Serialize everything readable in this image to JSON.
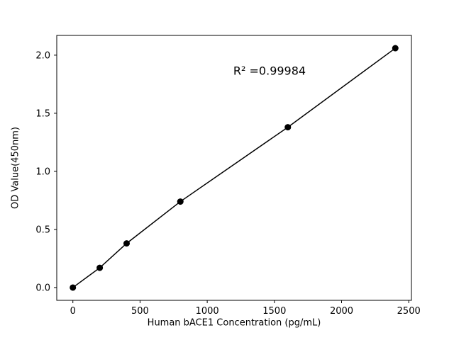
{
  "chart_data": {
    "type": "scatter",
    "title": "",
    "xlabel": "Human bACE1 Concentration (pg/mL)",
    "ylabel": "OD Value(450nm)",
    "annotation": "R² =0.99984",
    "x": [
      0,
      200,
      400,
      800,
      1600,
      2400
    ],
    "y": [
      0.0,
      0.17,
      0.38,
      0.74,
      1.38,
      2.06
    ],
    "xlim": [
      -120,
      2520
    ],
    "ylim": [
      -0.11,
      2.17
    ],
    "xticks": [
      0,
      500,
      1000,
      1500,
      2000,
      2500
    ],
    "xtick_labels": [
      "0",
      "500",
      "1000",
      "1500",
      "2000",
      "2500"
    ],
    "yticks": [
      0.0,
      0.5,
      1.0,
      1.5,
      2.0
    ],
    "ytick_labels": [
      "0.0",
      "0.5",
      "1.0",
      "1.5",
      "2.0"
    ],
    "line_color": "#000000",
    "marker_color": "#000000",
    "marker_size": 4.5,
    "grid": false,
    "legend": null,
    "background_color": "#ffffff"
  }
}
